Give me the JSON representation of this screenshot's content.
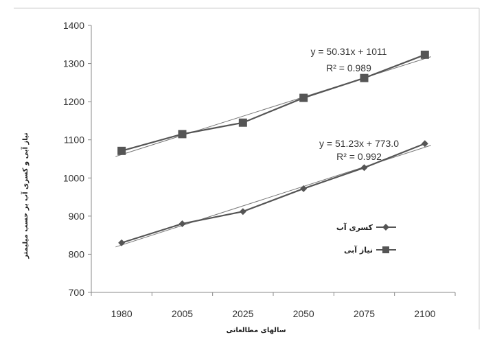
{
  "chart_data": {
    "type": "line",
    "title": "",
    "xlabel": "سالهای مطالعاتی",
    "ylabel": "نیاز آبی و کسری آب بر حسب میلیمتر",
    "categories": [
      "1980",
      "2005",
      "2025",
      "2050",
      "2075",
      "2100"
    ],
    "ylim": [
      700,
      1400
    ],
    "yticks": [
      700,
      800,
      900,
      1000,
      1100,
      1200,
      1300,
      1400
    ],
    "grid": false,
    "legend_position": "right",
    "series": [
      {
        "name": "کسری آب",
        "marker": "diamond",
        "values": [
          830,
          880,
          912,
          972,
          1027,
          1090
        ],
        "trendline": {
          "equation": "y = 51.23x + 773.0",
          "r2": "R² = 0.992",
          "slope": 51.23,
          "intercept": 773.0
        }
      },
      {
        "name": "نیاز آبی",
        "marker": "square",
        "values": [
          1071,
          1115,
          1145,
          1210,
          1262,
          1323
        ],
        "trendline": {
          "equation": "y = 50.31x + 1011",
          "r2": "R² = 0.989",
          "slope": 50.31,
          "intercept": 1011
        }
      }
    ],
    "colors": {
      "series": "#555555",
      "trend": "#777777",
      "axis": "#888888",
      "frame": "#cccccc"
    }
  }
}
